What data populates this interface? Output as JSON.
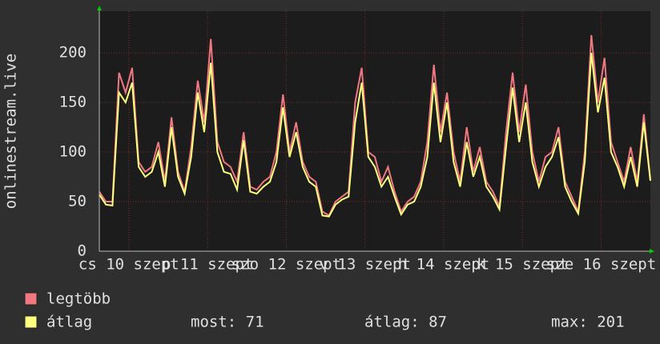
{
  "chart_data": {
    "type": "line",
    "y_label": "onlinestream.live",
    "x": [
      0,
      2,
      4,
      6,
      8,
      10,
      12,
      14,
      16,
      18,
      20,
      22,
      24,
      26,
      28,
      30,
      32,
      34,
      36,
      38,
      40,
      42,
      44,
      46,
      48,
      50,
      52,
      54,
      56,
      58,
      60,
      62,
      64,
      66,
      68,
      70,
      72,
      74,
      76,
      78,
      80,
      82,
      84,
      86,
      88,
      90,
      92,
      94,
      96,
      98,
      100,
      102,
      104,
      106,
      108,
      110,
      112,
      114,
      116,
      118,
      120,
      122,
      124,
      126,
      128,
      130,
      132,
      134,
      136,
      138,
      140,
      142,
      144,
      146,
      148,
      150,
      152,
      154,
      156,
      158,
      160,
      162,
      164,
      166,
      168
    ],
    "series": [
      {
        "name": "legtöbb",
        "color": "#f07880",
        "values": [
          60,
          50,
          50,
          180,
          160,
          185,
          90,
          80,
          85,
          110,
          70,
          135,
          80,
          60,
          105,
          172,
          130,
          214,
          110,
          90,
          85,
          70,
          120,
          65,
          62,
          70,
          75,
          100,
          158,
          100,
          130,
          90,
          75,
          70,
          40,
          36,
          50,
          55,
          60,
          150,
          185,
          100,
          95,
          70,
          85,
          60,
          40,
          50,
          55,
          70,
          110,
          188,
          120,
          160,
          100,
          70,
          125,
          80,
          105,
          70,
          60,
          45,
          120,
          180,
          120,
          168,
          100,
          70,
          95,
          100,
          125,
          70,
          55,
          40,
          100,
          218,
          150,
          195,
          110,
          90,
          70,
          105,
          70,
          138,
          72
        ]
      },
      {
        "name": "átlag",
        "color": "#ffff80",
        "values": [
          57,
          47,
          46,
          160,
          150,
          170,
          85,
          75,
          80,
          100,
          65,
          125,
          75,
          58,
          95,
          160,
          120,
          190,
          100,
          80,
          78,
          62,
          112,
          60,
          58,
          65,
          70,
          90,
          145,
          95,
          120,
          85,
          70,
          65,
          36,
          35,
          47,
          52,
          55,
          130,
          170,
          95,
          85,
          65,
          75,
          55,
          37,
          47,
          50,
          65,
          95,
          170,
          110,
          150,
          90,
          65,
          110,
          75,
          95,
          65,
          55,
          42,
          105,
          165,
          110,
          150,
          90,
          65,
          85,
          95,
          115,
          65,
          50,
          38,
          90,
          200,
          140,
          175,
          100,
          85,
          65,
          95,
          65,
          130,
          71
        ]
      }
    ],
    "stats": [
      "most: 71",
      "átlag: 87",
      "max: 201"
    ],
    "xlim": [
      0,
      168
    ],
    "ylim": [
      0,
      242
    ],
    "yticks": [
      0,
      50,
      100,
      150,
      200
    ],
    "xticks": [
      {
        "value": 9,
        "label": "cs 10 szept"
      },
      {
        "value": 33,
        "label": "p 11 szept"
      },
      {
        "value": 57,
        "label": "szo 12 szept"
      },
      {
        "value": 81,
        "label": "v 13 szept"
      },
      {
        "value": 105,
        "label": "h 14 szept"
      },
      {
        "value": 129,
        "label": "k 15 szept"
      },
      {
        "value": 153,
        "label": "sze 16 szept"
      }
    ],
    "grid": true
  }
}
